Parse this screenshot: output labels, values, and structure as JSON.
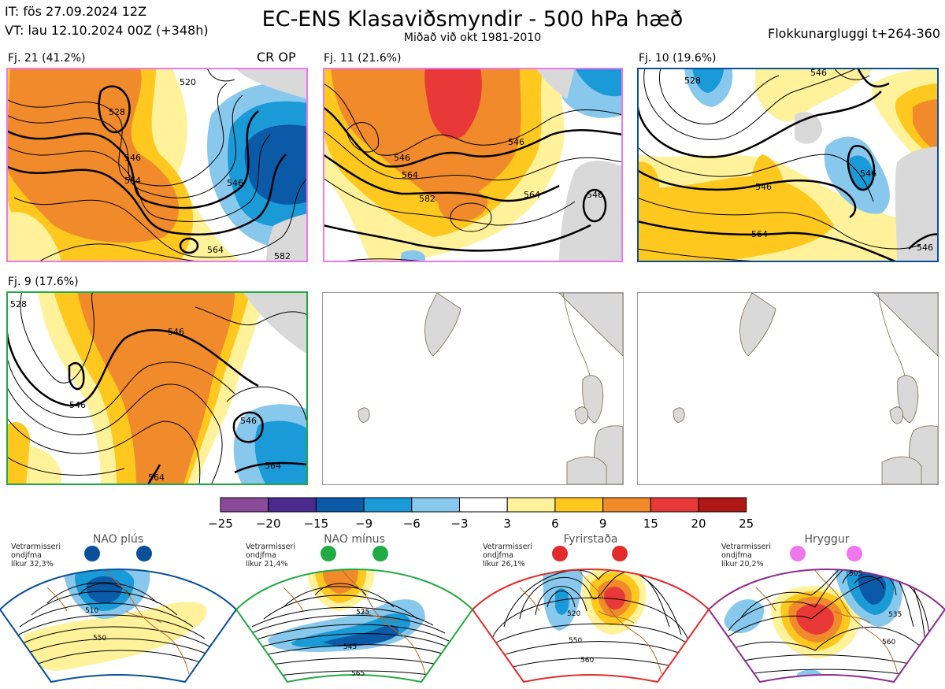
{
  "header": {
    "init_time": "IT: fös 27.09.2024 12Z",
    "valid_time": "VT: lau 12.10.2024 00Z  (+348h)",
    "title": "EC-ENS Klasaviðsmyndir - 500 hPa hæð",
    "subtitle": "Miðað við okt 1981-2010",
    "window": "Flokkunargluggi t+264-360"
  },
  "clusters": [
    {
      "label": "Fj. 21 (41.2%)",
      "extra": "CR OP",
      "border_color": "#ee77ee",
      "contour_labels": [
        "528",
        "546",
        "564",
        "546",
        "564",
        "582",
        "520"
      ]
    },
    {
      "label": "Fj. 11 (21.6%)",
      "extra": "",
      "border_color": "#ee77ee",
      "contour_labels": [
        "546",
        "564",
        "546",
        "564",
        "582",
        "546"
      ]
    },
    {
      "label": "Fj. 10 (19.6%)",
      "extra": "",
      "border_color": "#0a4f99",
      "contour_labels": [
        "528",
        "546",
        "546",
        "564",
        "546",
        "546"
      ]
    },
    {
      "label": "Fj. 9 (17.6%)",
      "extra": "",
      "border_color": "#22aa44",
      "contour_labels": [
        "528",
        "546",
        "546",
        "546",
        "564",
        "564"
      ]
    }
  ],
  "colorbar": {
    "ticks": [
      "−25",
      "−20",
      "−15",
      "−9",
      "−6",
      "−3",
      "3",
      "6",
      "9",
      "15",
      "20",
      "25"
    ],
    "colors": [
      "#8a4a9a",
      "#4a2a8c",
      "#0a5aa8",
      "#1a9ad6",
      "#88c8ec",
      "#ffffff",
      "#fff29a",
      "#ffc81e",
      "#f08a2a",
      "#e83838",
      "#b01818"
    ]
  },
  "regimes": [
    {
      "name": "NAO plús",
      "note": "Vetrarmisseri\nondjfma\nlíkur 32,3%",
      "dot_color": "#0a4f99",
      "frame_color": "#0a4f99",
      "contour_labels": [
        "510",
        "550"
      ]
    },
    {
      "name": "NAO mínus",
      "note": "Vetrarmisseri\nondjfma\nlíkur 21,4%",
      "dot_color": "#22aa44",
      "frame_color": "#22aa44",
      "contour_labels": [
        "525",
        "545",
        "565"
      ]
    },
    {
      "name": "Fyrirstaða",
      "note": "Vetrarmisseri\nondjfma\nlíkur 26,1%",
      "dot_color": "#e32b2b",
      "frame_color": "#e32b2b",
      "contour_labels": [
        "520",
        "550",
        "560"
      ]
    },
    {
      "name": "Hryggur",
      "note": "Vetrarmisseri\nondjfma\nlíkur 20,2%",
      "dot_color": "#ee77ee",
      "frame_color": "#8e2d8e",
      "contour_labels": [
        "505",
        "535",
        "560"
      ]
    }
  ],
  "chart_data": {
    "type": "heatmap",
    "variable": "500 hPa geopotential height with anomaly shading",
    "colorbar_bounds": [
      -25,
      -20,
      -15,
      -9,
      -6,
      -3,
      3,
      6,
      9,
      15,
      20,
      25
    ],
    "cluster_probabilities_percent": {
      "Fj. 21": 41.2,
      "Fj. 11": 21.6,
      "Fj. 10": 19.6,
      "Fj. 9": 17.6
    },
    "regime_winter_probabilities_percent": {
      "NAO plús": 32.3,
      "NAO mínus": 21.4,
      "Fyrirstaða": 26.1,
      "Hryggur": 20.2
    }
  }
}
